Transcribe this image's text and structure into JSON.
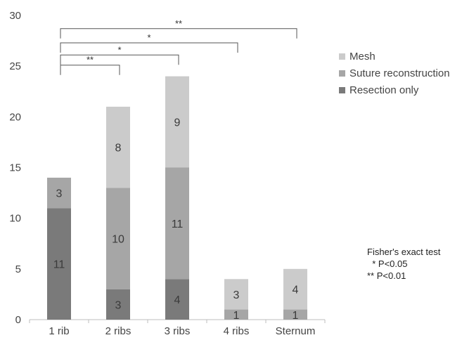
{
  "chart_data": {
    "type": "bar",
    "stacked": true,
    "categories": [
      "1 rib",
      "2 ribs",
      "3 ribs",
      "4 ribs",
      "Sternum"
    ],
    "series": [
      {
        "name": "Resection only",
        "values": [
          11,
          3,
          4,
          0,
          0
        ],
        "labels": [
          "11",
          "3",
          "4",
          "",
          ""
        ],
        "color": "#7a7a7a"
      },
      {
        "name": "Suture reconstruction",
        "values": [
          3,
          10,
          11,
          1,
          1
        ],
        "labels": [
          "3",
          "10",
          "11",
          "1",
          "1"
        ],
        "color": "#a6a6a6"
      },
      {
        "name": "Mesh",
        "values": [
          0,
          8,
          9,
          3,
          4
        ],
        "labels": [
          "",
          "8",
          "9",
          "3",
          "4"
        ],
        "color": "#cbcbcb"
      }
    ],
    "ylim": [
      0,
      30
    ],
    "yticks": [
      0,
      5,
      10,
      15,
      20,
      25,
      30
    ],
    "grid": false,
    "legend_position": "right",
    "significance": [
      {
        "from": "1 rib",
        "to": "2 ribs",
        "label": "**"
      },
      {
        "from": "1 rib",
        "to": "3 ribs",
        "label": "*"
      },
      {
        "from": "1 rib",
        "to": "4 ribs",
        "label": "*"
      },
      {
        "from": "1 rib",
        "to": "Sternum",
        "label": "**"
      }
    ]
  },
  "legend_order": [
    "Mesh",
    "Suture reconstruction",
    "Resection only"
  ],
  "note": {
    "title": "Fisher's exact test",
    "line1": "  * P<0.05",
    "line2": "** P<0.01"
  }
}
